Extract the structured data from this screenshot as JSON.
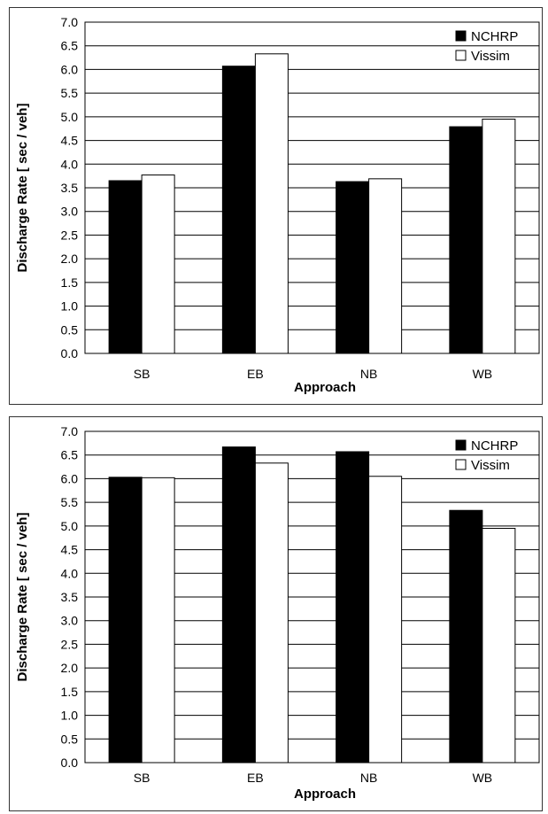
{
  "colors": {
    "series_primary": "#000000",
    "series_secondary": "#ffffff",
    "grid": "#000000",
    "frame": "#333333"
  },
  "chart_data": [
    {
      "type": "bar",
      "categories": [
        "SB",
        "EB",
        "NB",
        "WB"
      ],
      "series": [
        {
          "name": "NCHRP",
          "values": [
            3.65,
            6.07,
            3.63,
            4.79
          ],
          "color": "#000000"
        },
        {
          "name": "Vissim",
          "values": [
            3.77,
            6.33,
            3.69,
            4.95
          ],
          "color": "#ffffff"
        }
      ],
      "title": "",
      "xlabel": "Approach",
      "ylabel": "Discharge Rate [ sec / veh]",
      "ylim": [
        0,
        7.0
      ],
      "yticks": [
        "0.0",
        "0.5",
        "1.0",
        "1.5",
        "2.0",
        "2.5",
        "3.0",
        "3.5",
        "4.0",
        "4.5",
        "5.0",
        "5.5",
        "6.0",
        "6.5",
        "7.0"
      ],
      "grid": true,
      "legend": "top-right"
    },
    {
      "type": "bar",
      "categories": [
        "SB",
        "EB",
        "NB",
        "WB"
      ],
      "series": [
        {
          "name": "NCHRP",
          "values": [
            6.03,
            6.67,
            6.57,
            5.33
          ],
          "color": "#000000"
        },
        {
          "name": "Vissim",
          "values": [
            6.02,
            6.33,
            6.05,
            4.95
          ],
          "color": "#ffffff"
        }
      ],
      "title": "",
      "xlabel": "Approach",
      "ylabel": "Discharge Rate [ sec / veh]",
      "ylim": [
        0,
        7.0
      ],
      "yticks": [
        "0.0",
        "0.5",
        "1.0",
        "1.5",
        "2.0",
        "2.5",
        "3.0",
        "3.5",
        "4.0",
        "4.5",
        "5.0",
        "5.5",
        "6.0",
        "6.5",
        "7.0"
      ],
      "grid": true,
      "legend": "top-right"
    }
  ]
}
